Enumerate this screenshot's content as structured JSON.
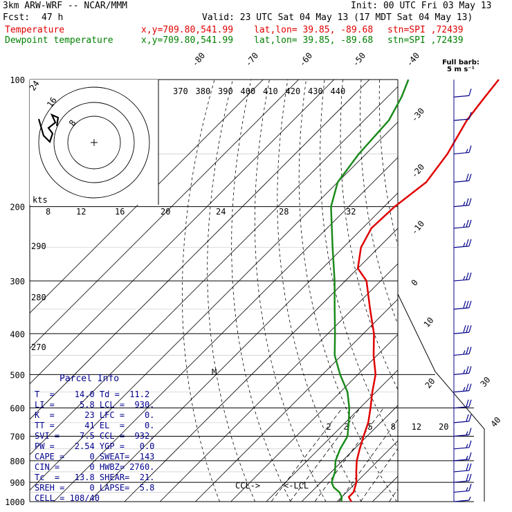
{
  "header": {
    "model": "3km ARW-WRF -- NCAR/MMM",
    "init": "Init: 00 UTC Fri 03 May 13",
    "fcst_label": "Fcst:",
    "fcst_value": "47 h",
    "valid": "Valid: 23 UTC Sat 04 May 13 (17 MDT Sat 04 May 13)",
    "temp_label": "Temperature",
    "dew_label": "Dewpoint temperature",
    "xy": "x,y=709.80,541.99",
    "latlon": "lat,lon= 39.85, -89.68",
    "stn": "stn=SPI ,72439"
  },
  "barb_title": {
    "line1": "Full barb:",
    "line2": "5 m s⁻¹"
  },
  "parcel_info": {
    "title": "Parcel Info",
    "rows": [
      "T  =    14.0 Td =  11.2",
      "LI =     5.8 LCL =  930.",
      "K  =      23 LFC =    0.",
      "TT =      41 EL  =    0.",
      "SVI =    7.5 CCL =  932.",
      "PW =    2.54 YGP =   0.0",
      "CAPE =     0 SWEAT=  143",
      "CIN =      0 HWBZ= 2760.",
      "Tc  =   13.8 SHEAR=  21.",
      "SREH =     0 LAPSE=  5.8",
      "CELL = 108/40"
    ]
  },
  "markers": {
    "lcl": "<-LCL",
    "ccl": "CCL->",
    "m": "M"
  },
  "colors": {
    "temperature": "#e00000",
    "dewpoint": "#1a8a1a",
    "wind": "#00008b",
    "grid": "#000000"
  },
  "chart_data": {
    "type": "line",
    "chart_kind": "skew-T log-P sounding",
    "pressure_levels": [
      "100",
      "200",
      "300",
      "400",
      "500",
      "600",
      "700",
      "800",
      "900",
      "1000"
    ],
    "isotherm_labels": [
      "-80",
      "-70",
      "-60",
      "-50",
      "-40",
      "-30",
      "-20",
      "-10",
      "0",
      "10",
      "20",
      "30",
      "40"
    ],
    "theta_labels": [
      "370",
      "380",
      "390",
      "400",
      "410",
      "420",
      "430",
      "440"
    ],
    "theta_left_labels": [
      "290",
      "280",
      "270"
    ],
    "mixing_ratio_labels": [
      "2",
      "3",
      "5",
      "8",
      "12",
      "20"
    ],
    "hodograph_speed_labels": [
      "8",
      "16",
      "24",
      "32"
    ],
    "hodograph_upper_labels": [
      "12",
      "20",
      "28"
    ],
    "hodograph_unit": "kts",
    "series": [
      {
        "name": "Temperature",
        "points": [
          {
            "p": 1000,
            "t": 14.0
          },
          {
            "p": 975,
            "t": 12.0
          },
          {
            "p": 950,
            "t": 12.0
          },
          {
            "p": 900,
            "t": 10.0
          },
          {
            "p": 850,
            "t": 7.0
          },
          {
            "p": 800,
            "t": 4.0
          },
          {
            "p": 750,
            "t": 1.5
          },
          {
            "p": 700,
            "t": -1.0
          },
          {
            "p": 650,
            "t": -3.5
          },
          {
            "p": 600,
            "t": -7.0
          },
          {
            "p": 550,
            "t": -11.0
          },
          {
            "p": 500,
            "t": -15.0
          },
          {
            "p": 450,
            "t": -21.0
          },
          {
            "p": 400,
            "t": -27.0
          },
          {
            "p": 350,
            "t": -35.0
          },
          {
            "p": 300,
            "t": -44.0
          },
          {
            "p": 280,
            "t": -50.0
          },
          {
            "p": 250,
            "t": -55.0
          },
          {
            "p": 225,
            "t": -57.5
          },
          {
            "p": 200,
            "t": -57.0
          },
          {
            "p": 175,
            "t": -55.0
          },
          {
            "p": 150,
            "t": -57.0
          },
          {
            "p": 125,
            "t": -61.0
          },
          {
            "p": 110,
            "t": -62.5
          },
          {
            "p": 100,
            "t": -63.5
          }
        ]
      },
      {
        "name": "Dewpoint temperature",
        "points": [
          {
            "p": 1000,
            "t": 11.2
          },
          {
            "p": 975,
            "t": 10.0
          },
          {
            "p": 950,
            "t": 8.0
          },
          {
            "p": 925,
            "t": 5.0
          },
          {
            "p": 900,
            "t": 3.0
          },
          {
            "p": 850,
            "t": 1.0
          },
          {
            "p": 800,
            "t": -2.0
          },
          {
            "p": 750,
            "t": -4.0
          },
          {
            "p": 700,
            "t": -5.5
          },
          {
            "p": 650,
            "t": -9.0
          },
          {
            "p": 600,
            "t": -13.0
          },
          {
            "p": 550,
            "t": -18.0
          },
          {
            "p": 500,
            "t": -25.0
          },
          {
            "p": 450,
            "t": -32.0
          },
          {
            "p": 400,
            "t": -38.0
          },
          {
            "p": 350,
            "t": -45.0
          },
          {
            "p": 300,
            "t": -53.0
          },
          {
            "p": 250,
            "t": -63.0
          },
          {
            "p": 200,
            "t": -75.0
          },
          {
            "p": 175,
            "t": -80.0
          },
          {
            "p": 150,
            "t": -82.0
          },
          {
            "p": 125,
            "t": -83.0
          },
          {
            "p": 110,
            "t": -86.0
          },
          {
            "p": 100,
            "t": -89.0
          }
        ]
      }
    ],
    "wind_barbs_m_per_s": [
      {
        "p": 1000,
        "speed": 5
      },
      {
        "p": 950,
        "speed": 15
      },
      {
        "p": 900,
        "speed": 20
      },
      {
        "p": 850,
        "speed": 20
      },
      {
        "p": 800,
        "speed": 15
      },
      {
        "p": 750,
        "speed": 15
      },
      {
        "p": 700,
        "speed": 15
      },
      {
        "p": 650,
        "speed": 20
      },
      {
        "p": 600,
        "speed": 20
      },
      {
        "p": 550,
        "speed": 25
      },
      {
        "p": 500,
        "speed": 25
      },
      {
        "p": 450,
        "speed": 25
      },
      {
        "p": 400,
        "speed": 30
      },
      {
        "p": 350,
        "speed": 30
      },
      {
        "p": 300,
        "speed": 25
      },
      {
        "p": 250,
        "speed": 25
      },
      {
        "p": 225,
        "speed": 25
      },
      {
        "p": 200,
        "speed": 25
      },
      {
        "p": 175,
        "speed": 20
      },
      {
        "p": 150,
        "speed": 15
      },
      {
        "p": 125,
        "speed": 10
      },
      {
        "p": 110,
        "speed": 10
      }
    ]
  }
}
